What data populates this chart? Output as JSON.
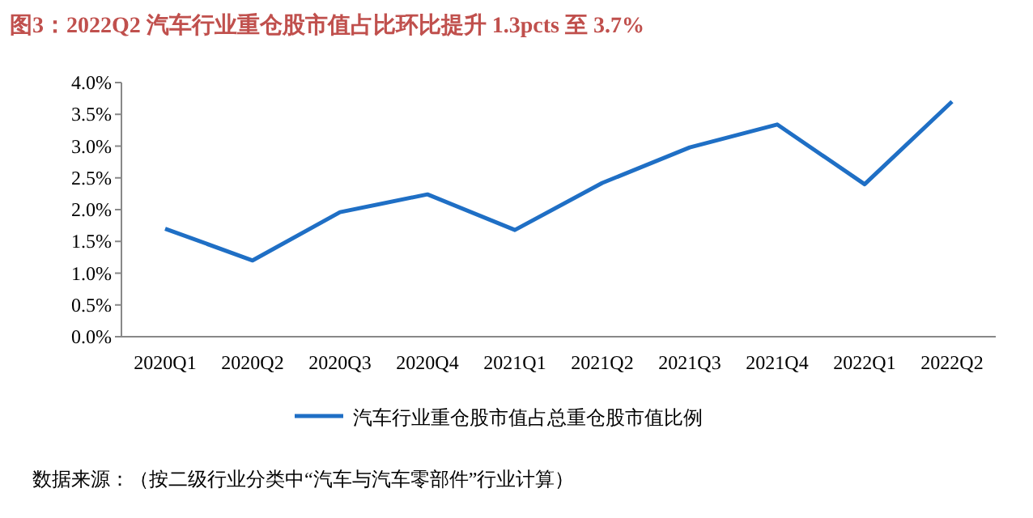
{
  "chart_data": {
    "type": "line",
    "title": "图3：2022Q2 汽车行业重仓股市值占比环比提升 1.3pcts 至 3.7%",
    "categories": [
      "2020Q1",
      "2020Q2",
      "2020Q3",
      "2020Q4",
      "2021Q1",
      "2021Q2",
      "2021Q3",
      "2021Q4",
      "2022Q1",
      "2022Q2"
    ],
    "series": [
      {
        "name": "汽车行业重仓股市值占总重仓股市值比例",
        "color": "#1f6fc5",
        "values": [
          1.7,
          1.2,
          1.96,
          2.24,
          1.68,
          2.42,
          2.98,
          3.34,
          2.4,
          3.7
        ]
      }
    ],
    "ylim": [
      0,
      4
    ],
    "yticks": [
      {
        "value": 0,
        "label": "0.0%"
      },
      {
        "value": 0.5,
        "label": "0.5%"
      },
      {
        "value": 1,
        "label": "1.0%"
      },
      {
        "value": 1.5,
        "label": "1.5%"
      },
      {
        "value": 2,
        "label": "2.0%"
      },
      {
        "value": 2.5,
        "label": "2.5%"
      },
      {
        "value": 3,
        "label": "3.0%"
      },
      {
        "value": 3.5,
        "label": "3.5%"
      },
      {
        "value": 4,
        "label": "4.0%"
      }
    ],
    "legend": "bottom",
    "grid": false,
    "marker": "none",
    "line_style": "solid",
    "annotations": [
      "数据来源：（按二级行业分类中“汽车与汽车零部件”行业计算）"
    ]
  }
}
